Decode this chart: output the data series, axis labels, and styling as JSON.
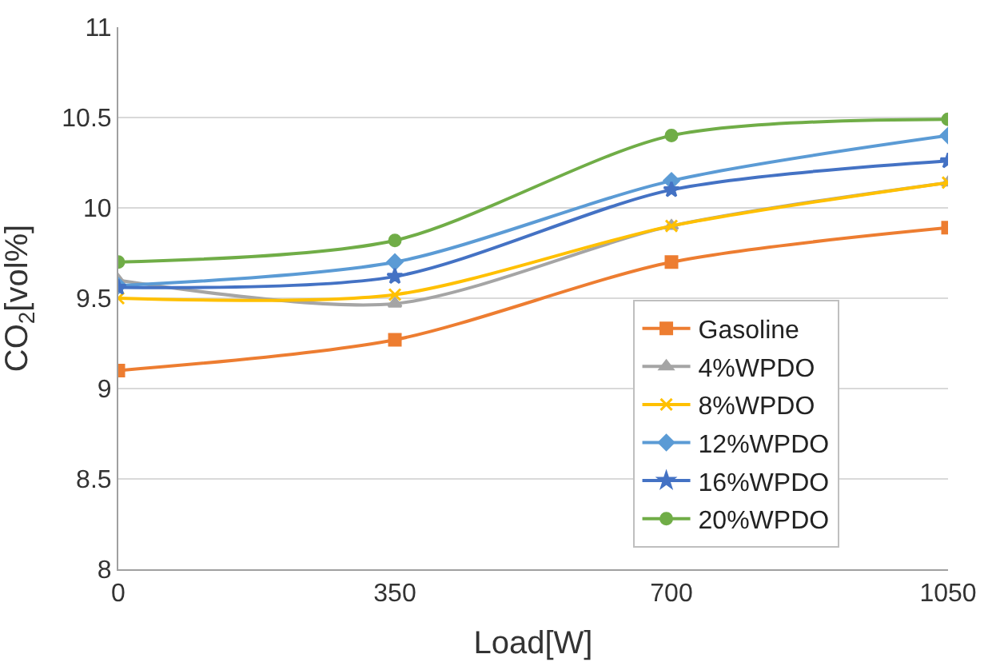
{
  "chart_data": {
    "type": "line",
    "xlabel": "Load[W]",
    "ylabel": "CO$_{2}$[vol%]",
    "x": [
      0,
      350,
      700,
      1050
    ],
    "xlim": [
      0,
      1050
    ],
    "xticks": [
      0,
      350,
      700,
      1050
    ],
    "ylim": [
      8,
      11
    ],
    "yticks": [
      8,
      {
        "value": 8.5,
        "label": "8.5"
      },
      9,
      {
        "value": 9.5,
        "label": "9.5"
      },
      10,
      {
        "value": 10.5,
        "label": "10.5"
      },
      11
    ],
    "grid": "y",
    "legend": "bottom right",
    "series": [
      {
        "name": "Gasoline",
        "color": "#ed7d31",
        "marker": "square",
        "values": [
          9.1,
          9.27,
          9.7,
          9.89
        ]
      },
      {
        "name": "4%WPDO",
        "color": "#a5a5a5",
        "marker": "triangle",
        "values": [
          9.6,
          9.47,
          9.9,
          10.14
        ]
      },
      {
        "name": "8%WPDO",
        "color": "#ffc000",
        "marker": "cross",
        "values": [
          9.5,
          9.52,
          9.9,
          10.14
        ]
      },
      {
        "name": "12%WPDO",
        "color": "#5b9bd5",
        "marker": "diamond",
        "values": [
          9.57,
          9.7,
          10.15,
          10.4
        ]
      },
      {
        "name": "16%WPDO",
        "color": "#4472c4",
        "marker": "star",
        "values": [
          9.56,
          9.62,
          10.1,
          10.26
        ]
      },
      {
        "name": "20%WPDO",
        "color": "#70ad47",
        "marker": "circle",
        "values": [
          9.7,
          9.82,
          10.4,
          10.49
        ]
      }
    ]
  }
}
